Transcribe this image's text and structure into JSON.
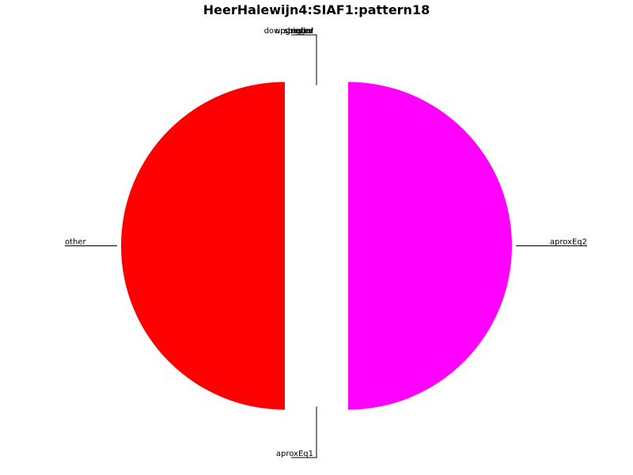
{
  "chart_data": {
    "type": "pie",
    "title": "HeerHalewijn4:SIAF1:pattern18",
    "slices": [
      {
        "label": "other",
        "value": 50,
        "color": "#ff0000",
        "explode": true
      },
      {
        "label": "aproxEq1",
        "value": 0,
        "color": "#00aa00",
        "explode": false
      },
      {
        "label": "aproxEq2",
        "value": 50,
        "color": "#ff00ff",
        "explode": true
      },
      {
        "label": "bigger",
        "value": 0,
        "color": "#0000ff",
        "explode": false
      },
      {
        "label": "smaller",
        "value": 0,
        "color": "#00ffff",
        "explode": false
      },
      {
        "label": "equal",
        "value": 0,
        "color": "#ffff00",
        "explode": false
      },
      {
        "label": "upgraded",
        "value": 0,
        "color": "#808080",
        "explode": false
      },
      {
        "label": "downgraded",
        "value": 0,
        "color": "#000000",
        "explode": false
      }
    ],
    "legend": false
  }
}
